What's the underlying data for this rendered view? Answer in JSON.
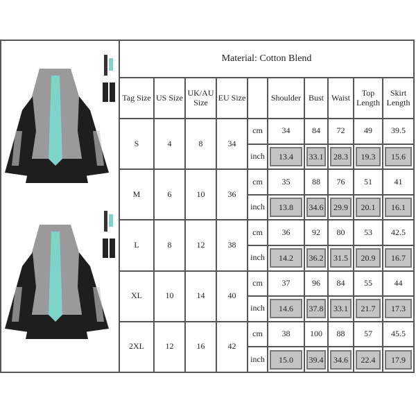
{
  "table": {
    "title": "Material: Cotton Blend",
    "headers": [
      "Tag Size",
      "US Size",
      "UK/AU Size",
      "EU Size",
      "",
      "Shoulder",
      "Bust",
      "Waist",
      "Top Length",
      "Skirt Length"
    ],
    "unit_labels": {
      "cm": "cm",
      "inch": "inch"
    },
    "rows": [
      {
        "tag": "S",
        "us": "4",
        "uk": "8",
        "eu": "34",
        "cm": [
          "34",
          "84",
          "72",
          "49",
          "39.5"
        ],
        "inch": [
          "13.4",
          "33.1",
          "28.3",
          "19.3",
          "15.6"
        ]
      },
      {
        "tag": "M",
        "us": "6",
        "uk": "10",
        "eu": "36",
        "cm": [
          "35",
          "88",
          "76",
          "51",
          "41"
        ],
        "inch": [
          "13.8",
          "34.6",
          "29.9",
          "20.1",
          "16.1"
        ]
      },
      {
        "tag": "L",
        "us": "8",
        "uk": "12",
        "eu": "38",
        "cm": [
          "36",
          "92",
          "80",
          "53",
          "42.5"
        ],
        "inch": [
          "14.2",
          "36.2",
          "31.5",
          "20.9",
          "16.7"
        ]
      },
      {
        "tag": "XL",
        "us": "10",
        "uk": "14",
        "eu": "40",
        "cm": [
          "37",
          "96",
          "84",
          "55",
          "44"
        ],
        "inch": [
          "14.6",
          "37.8",
          "33.1",
          "21.7",
          "17.3"
        ]
      },
      {
        "tag": "2XL",
        "us": "12",
        "uk": "16",
        "eu": "42",
        "cm": [
          "38",
          "100",
          "88",
          "57",
          "45.5"
        ],
        "inch": [
          "15.0",
          "39.4",
          "34.6",
          "22.4",
          "17.9"
        ]
      }
    ]
  },
  "colors": {
    "tie": "#7fd3c9",
    "dress": "#9a9a9a",
    "sleeve": "#1e1e1e",
    "inch_cell": "#c4c4c4"
  }
}
